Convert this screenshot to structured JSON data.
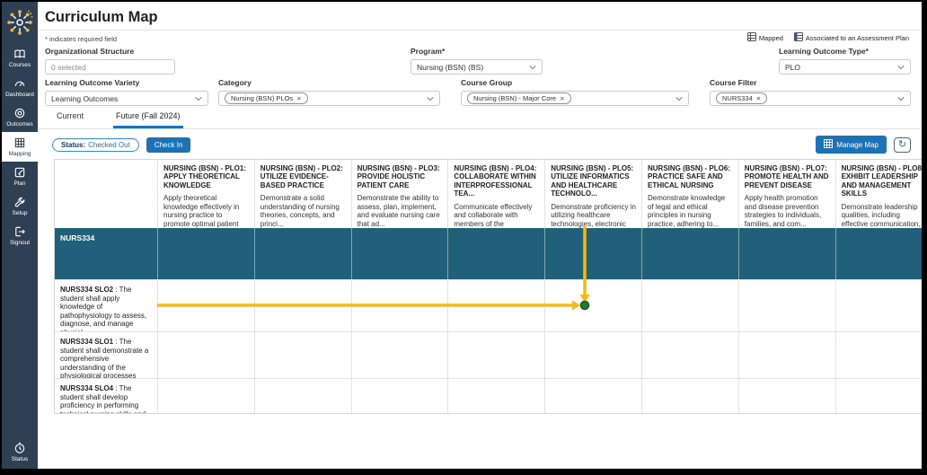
{
  "header": {
    "title": "Curriculum Map",
    "required_note": "* indicates required field"
  },
  "legend": {
    "mapped_label": "Mapped",
    "associated_label": "Associated to an Assessment Plan"
  },
  "sidebar": {
    "items": [
      {
        "label": "Courses",
        "icon": "book-icon"
      },
      {
        "label": "Dashboard",
        "icon": "gauge-icon"
      },
      {
        "label": "Outcomes",
        "icon": "target-icon"
      },
      {
        "label": "Mapping",
        "icon": "grid-icon",
        "active": true
      },
      {
        "label": "Plan",
        "icon": "edit-icon"
      },
      {
        "label": "Setup",
        "icon": "wrench-icon"
      },
      {
        "label": "Signout",
        "icon": "signout-icon"
      }
    ],
    "status_label": "Status"
  },
  "filters": {
    "organizational_structure": {
      "label": "Organizational Structure",
      "value": "0 selected"
    },
    "program": {
      "label": "Program*",
      "value": "Nursing (BSN) (BS)"
    },
    "learning_outcome_type": {
      "label": "Learning Outcome Type*",
      "value": "PLO"
    },
    "learning_outcome_variety": {
      "label": "Learning Outcome Variety",
      "value": "Learning Outcomes"
    },
    "category": {
      "label": "Category",
      "chip": "Nursing (BSN) PLOs"
    },
    "course_group": {
      "label": "Course Group",
      "chip": "Nursing (BSN) - Major Core"
    },
    "course_filter": {
      "label": "Course Filter",
      "chip": "NURS334"
    }
  },
  "tabs": {
    "items": [
      {
        "label": "Current"
      },
      {
        "label": "Future (Fall 2024)",
        "active": true
      }
    ]
  },
  "status_bar": {
    "status_label": "Status:",
    "status_value": "Checked Out",
    "check_in_label": "Check In",
    "manage_map_label": "Manage Map",
    "refresh_icon": "refresh-icon"
  },
  "table": {
    "course_row": "NURS334",
    "columns": [
      {
        "title": "NURSING (BSN) - PLO1: APPLY THEORETICAL KNOWLEDGE",
        "description": "Apply theoretical knowledge effectively in nursing practice to promote optimal patient care..."
      },
      {
        "title": "NURSING (BSN) - PLO2: UTILIZE EVIDENCE-BASED PRACTICE",
        "description": "Demonstrate a solid understanding of nursing theories, concepts, and princi..."
      },
      {
        "title": "NURSING (BSN) - PLO3: PROVIDE HOLISTIC PATIENT CARE",
        "description": "Demonstrate the ability to assess, plan, implement, and evaluate nursing care that ad..."
      },
      {
        "title": "NURSING (BSN) - PLO4: COLLABORATE WITHIN INTERPROFESSIONAL TEA...",
        "description": "Communicate effectively and collaborate with members of the healthcare team, includin..."
      },
      {
        "title": "NURSING (BSN) - PLO5: UTILIZE INFORMATICS AND HEALTHCARE TECHNOLO...",
        "description": "Demonstrate proficiency in utilizing healthcare technologies, electronic healt..."
      },
      {
        "title": "NURSING (BSN) - PLO6: PRACTICE SAFE AND ETHICAL NURSING",
        "description": "Demonstrate knowledge of legal and ethical principles in nursing practice, adhering to..."
      },
      {
        "title": "NURSING (BSN) - PLO7: PROMOTE HEALTH AND PREVENT DISEASE",
        "description": "Apply health promotion and disease prevention strategies to individuals, families, and com..."
      },
      {
        "title": "NURSING (BSN) - PLO8: EXHIBIT LEADERSHIP AND MANAGEMENT SKILLS",
        "description": "Demonstrate leadership qualities, including effective communication, delegation, a..."
      }
    ],
    "rows": [
      {
        "code": "NURS334 SLO2",
        "text": ": The student shall apply knowledge of pathophysiology to assess, diagnose, and manage physiol..."
      },
      {
        "code": "NURS334 SLO1",
        "text": ": The student shall demonstrate a comprehensive understanding of the physiological processes an..."
      },
      {
        "code": "NURS334 SLO4",
        "text": ": The student shall develop proficiency in performing technical nursing skills and procedures related t..."
      }
    ]
  },
  "colors": {
    "accent": "#1c72b8",
    "teal": "#20607b",
    "sidebar": "#2e4154",
    "traj-yellow": "#f8ba12",
    "dot-green": "#1e7b33",
    "dot-green-border": "#11571f"
  }
}
